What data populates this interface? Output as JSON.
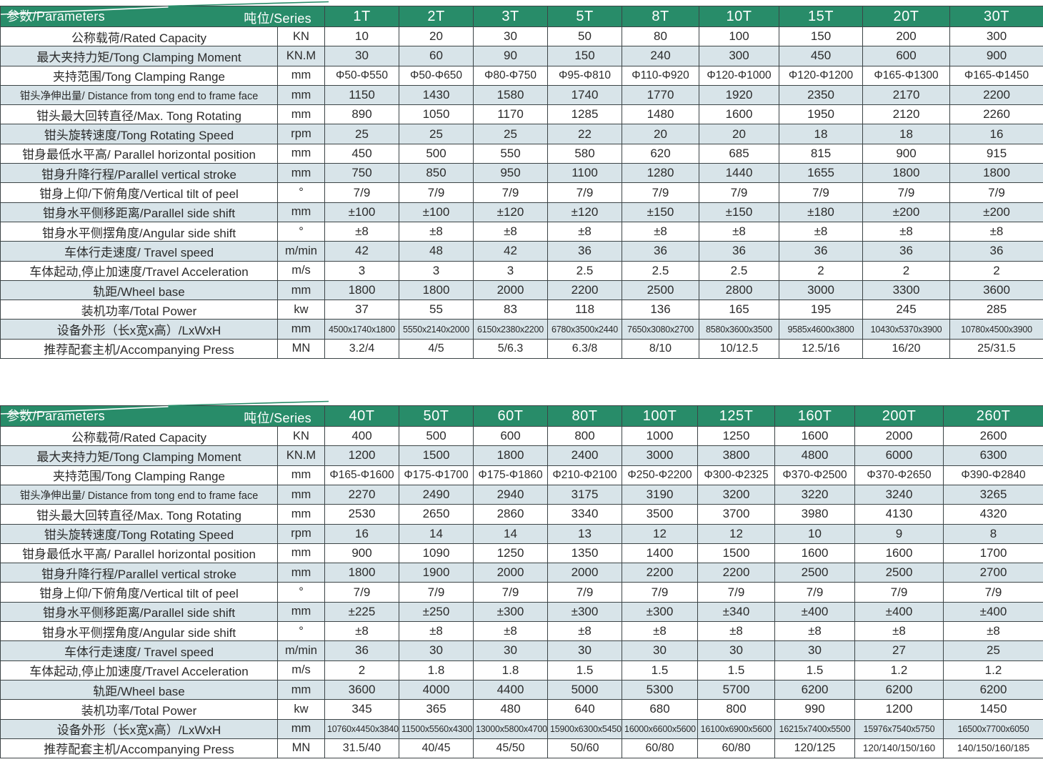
{
  "colors": {
    "header_green": "#288c69",
    "row_shaded": "#d8e4e9",
    "row_plain": "#ffffff",
    "border": "#3c4446",
    "header_text": "#ffffff",
    "body_text": "#2b2b2b"
  },
  "corner": {
    "parameters": "参数/Parameters",
    "series": "吨位/Series"
  },
  "row_headers": [
    {
      "label": "公称载荷/Rated Capacity",
      "unit": "KN"
    },
    {
      "label": "最大夹持力矩/Tong Clamping Moment",
      "unit": "KN.M"
    },
    {
      "label": "夹持范围/Tong Clamping Range",
      "unit": "mm"
    },
    {
      "label": "钳头净伸出量/ Distance from tong end to frame face",
      "unit": "mm"
    },
    {
      "label": "钳头最大回转直径/Max. Tong Rotating",
      "unit": "mm"
    },
    {
      "label": "钳头旋转速度/Tong Rotating Speed",
      "unit": "rpm"
    },
    {
      "label": "钳身最低水平高/ Parallel horizontal position",
      "unit": "mm"
    },
    {
      "label": "钳身升降行程/Parallel vertical stroke",
      "unit": "mm"
    },
    {
      "label": "钳身上仰/下俯角度/Vertical tilt of peel",
      "unit": "°"
    },
    {
      "label": "钳身水平侧移距离/Parallel side shift",
      "unit": "mm"
    },
    {
      "label": "钳身水平侧摆角度/Angular side shift",
      "unit": "°"
    },
    {
      "label": "车体行走速度/ Travel speed",
      "unit": "m/min"
    },
    {
      "label": "车体起动,停止加速度/Travel Acceleration",
      "unit": "m/s"
    },
    {
      "label": "轨距/Wheel base",
      "unit": "mm"
    },
    {
      "label": "装机功率/Total Power",
      "unit": "kw"
    },
    {
      "label": "设备外形（长x宽x高）/LxWxH",
      "unit": "mm"
    },
    {
      "label": "推荐配套主机/Accompanying Press",
      "unit": "MN"
    }
  ],
  "tables": [
    {
      "series": [
        "1T",
        "2T",
        "3T",
        "5T",
        "8T",
        "10T",
        "15T",
        "20T",
        "30T"
      ],
      "rows": [
        [
          "10",
          "20",
          "30",
          "50",
          "80",
          "100",
          "150",
          "200",
          "300"
        ],
        [
          "30",
          "60",
          "90",
          "150",
          "240",
          "300",
          "450",
          "600",
          "900"
        ],
        [
          "Φ50-Φ550",
          "Φ50-Φ650",
          "Φ80-Φ750",
          "Φ95-Φ810",
          "Φ110-Φ920",
          "Φ120-Φ1000",
          "Φ120-Φ1200",
          "Φ165-Φ1300",
          "Φ165-Φ1450"
        ],
        [
          "1150",
          "1430",
          "1580",
          "1740",
          "1770",
          "1920",
          "2350",
          "2170",
          "2200"
        ],
        [
          "890",
          "1050",
          "1170",
          "1285",
          "1480",
          "1600",
          "1950",
          "2120",
          "2260"
        ],
        [
          "25",
          "25",
          "25",
          "22",
          "20",
          "20",
          "18",
          "18",
          "16"
        ],
        [
          "450",
          "500",
          "550",
          "580",
          "620",
          "685",
          "815",
          "900",
          "915"
        ],
        [
          "750",
          "850",
          "950",
          "1100",
          "1280",
          "1440",
          "1655",
          "1800",
          "1800"
        ],
        [
          "7/9",
          "7/9",
          "7/9",
          "7/9",
          "7/9",
          "7/9",
          "7/9",
          "7/9",
          "7/9"
        ],
        [
          "±100",
          "±100",
          "±120",
          "±120",
          "±150",
          "±150",
          "±180",
          "±200",
          "±200"
        ],
        [
          "±8",
          "±8",
          "±8",
          "±8",
          "±8",
          "±8",
          "±8",
          "±8",
          "±8"
        ],
        [
          "42",
          "48",
          "42",
          "36",
          "36",
          "36",
          "36",
          "36",
          "36"
        ],
        [
          "3",
          "3",
          "3",
          "2.5",
          "2.5",
          "2.5",
          "2",
          "2",
          "2"
        ],
        [
          "1800",
          "1800",
          "2000",
          "2200",
          "2500",
          "2800",
          "3000",
          "3300",
          "3600"
        ],
        [
          "37",
          "55",
          "83",
          "118",
          "136",
          "165",
          "195",
          "245",
          "285"
        ],
        [
          "4500x1740x1800",
          "5550x2140x2000",
          "6150x2380x2200",
          "6780x3500x2440",
          "7650x3080x2700",
          "8580x3600x3500",
          "9585x4600x3800",
          "10430x5370x3900",
          "10780x4500x3900"
        ],
        [
          "3.2/4",
          "4/5",
          "5/6.3",
          "6.3/8",
          "8/10",
          "10/12.5",
          "12.5/16",
          "16/20",
          "25/31.5"
        ]
      ]
    },
    {
      "series": [
        "40T",
        "50T",
        "60T",
        "80T",
        "100T",
        "125T",
        "160T",
        "200T",
        "260T"
      ],
      "rows": [
        [
          "400",
          "500",
          "600",
          "800",
          "1000",
          "1250",
          "1600",
          "2000",
          "2600"
        ],
        [
          "1200",
          "1500",
          "1800",
          "2400",
          "3000",
          "3800",
          "4800",
          "6000",
          "6300"
        ],
        [
          "Φ165-Φ1600",
          "Φ175-Φ1700",
          "Φ175-Φ1860",
          "Φ210-Φ2100",
          "Φ250-Φ2200",
          "Φ300-Φ2325",
          "Φ370-Φ2500",
          "Φ370-Φ2650",
          "Φ390-Φ2840"
        ],
        [
          "2270",
          "2490",
          "2940",
          "3175",
          "3190",
          "3200",
          "3220",
          "3240",
          "3265"
        ],
        [
          "2530",
          "2650",
          "2860",
          "3340",
          "3500",
          "3700",
          "3980",
          "4130",
          "4320"
        ],
        [
          "16",
          "14",
          "14",
          "13",
          "12",
          "12",
          "10",
          "9",
          "8"
        ],
        [
          "900",
          "1090",
          "1250",
          "1350",
          "1400",
          "1500",
          "1600",
          "1600",
          "1700"
        ],
        [
          "1800",
          "1900",
          "2000",
          "2000",
          "2200",
          "2200",
          "2500",
          "2500",
          "2700"
        ],
        [
          "7/9",
          "7/9",
          "7/9",
          "7/9",
          "7/9",
          "7/9",
          "7/9",
          "7/9",
          "7/9"
        ],
        [
          "±225",
          "±250",
          "±300",
          "±300",
          "±300",
          "±340",
          "±400",
          "±400",
          "±400"
        ],
        [
          "±8",
          "±8",
          "±8",
          "±8",
          "±8",
          "±8",
          "±8",
          "±8",
          "±8"
        ],
        [
          "36",
          "30",
          "30",
          "30",
          "30",
          "30",
          "30",
          "27",
          "25"
        ],
        [
          "2",
          "1.8",
          "1.8",
          "1.5",
          "1.5",
          "1.5",
          "1.5",
          "1.2",
          "1.2"
        ],
        [
          "3600",
          "4000",
          "4400",
          "5000",
          "5300",
          "5700",
          "6200",
          "6200",
          "6200"
        ],
        [
          "345",
          "365",
          "480",
          "640",
          "680",
          "800",
          "990",
          "1200",
          "1450"
        ],
        [
          "10760x4450x3840",
          "11500x5560x4300",
          "13000x5800x4700",
          "15900x6300x5450",
          "16000x6600x5600",
          "16100x6900x5600",
          "16215x7400x5500",
          "15976x7540x5750",
          "16500x7700x6050"
        ],
        [
          "31.5/40",
          "40/45",
          "45/50",
          "50/60",
          "60/80",
          "60/80",
          "120/125",
          "120/140/150/160",
          "140/150/160/185"
        ]
      ]
    }
  ]
}
